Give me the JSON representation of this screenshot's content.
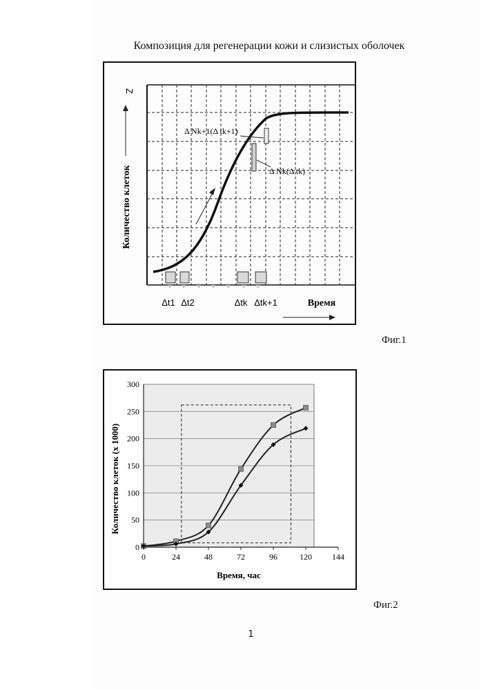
{
  "title": "Композиция для регенерации кожи и слизистых оболочек",
  "page_number": "1",
  "fig1": {
    "label": "Фиг.1",
    "ylabel": "Количество клеток",
    "z_label": "Z",
    "xlabel": "Время",
    "interval_labels": [
      "Δt1",
      "Δt2",
      "Δtk",
      "Δtk+1"
    ],
    "annot_k1": "Δ Nk+1(Δ tk+1)",
    "annot_k": "Δ Nk(Δ tk)"
  },
  "fig2": {
    "label": "Фиг.2",
    "colors": {
      "square_series": "#222222",
      "diamond_series": "#222222",
      "plot_bg": "#ececec",
      "square_marker": "#8c8c8c"
    }
  },
  "chart_data": {
    "type": "line",
    "xlabel": "Время, час",
    "ylabel": "Количество клеток (x 1000)",
    "x_ticks": [
      0,
      24,
      48,
      72,
      96,
      120,
      144
    ],
    "y_ticks": [
      0,
      50,
      100,
      150,
      200,
      250,
      300
    ],
    "xlim": [
      0,
      144
    ],
    "ylim": [
      0,
      300
    ],
    "grid": "horizontal",
    "series": [
      {
        "marker": "square",
        "x": [
          0,
          24,
          48,
          72,
          96,
          120
        ],
        "y": [
          2,
          11,
          40,
          144,
          225,
          257
        ]
      },
      {
        "marker": "diamond",
        "x": [
          0,
          24,
          48,
          72,
          96,
          120
        ],
        "y": [
          2,
          6,
          28,
          114,
          189,
          219
        ]
      }
    ],
    "dashed_box": {
      "x": [
        28,
        109
      ],
      "y": [
        8,
        262
      ]
    }
  }
}
